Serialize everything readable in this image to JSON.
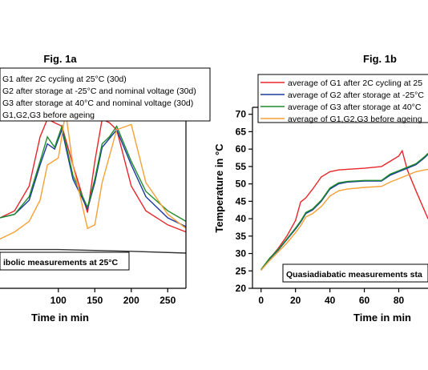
{
  "chart_data": [
    {
      "type": "line",
      "title": "Fig. 1a",
      "xlabel": "Time in min",
      "ylabel": "",
      "xlim": [
        20,
        275
      ],
      "xticks": [
        100,
        150,
        200,
        250
      ],
      "annotation": "ibolic measurements at 25°C",
      "legend_position": "top-left",
      "legend": [
        {
          "text": "G1 after 2C cycling at 25°C (30d)",
          "color": "#e8262a"
        },
        {
          "text": "G2 after storage at -25°C and nominal voltage (30d)",
          "color": "#1c3a9e"
        },
        {
          "text": "G3 after storage at 40°C and nominal voltage (30d)",
          "color": "#1f8a2b"
        },
        {
          "text": "G1,G2,G3 before ageing",
          "color": "#f7a035"
        }
      ],
      "series": [
        {
          "color": "#e8262a",
          "x": [
            20,
            40,
            60,
            75,
            85,
            95,
            105,
            120,
            140,
            150,
            160,
            170,
            180,
            200,
            220,
            250,
            275
          ],
          "y": [
            40,
            44,
            58,
            86,
            96,
            94,
            92,
            70,
            43,
            72,
            96,
            94,
            90,
            58,
            44,
            36,
            32
          ]
        },
        {
          "color": "#1c3a9e",
          "x": [
            20,
            40,
            60,
            75,
            85,
            95,
            105,
            120,
            140,
            150,
            160,
            170,
            180,
            200,
            220,
            250,
            275
          ],
          "y": [
            40,
            42,
            50,
            70,
            82,
            79,
            90,
            62,
            45,
            60,
            80,
            85,
            90,
            70,
            52,
            40,
            35
          ]
        },
        {
          "color": "#1f8a2b",
          "x": [
            20,
            40,
            60,
            75,
            85,
            95,
            105,
            120,
            140,
            150,
            160,
            170,
            180,
            200,
            220,
            250,
            275
          ],
          "y": [
            40,
            42,
            52,
            72,
            86,
            80,
            92,
            64,
            46,
            62,
            82,
            86,
            92,
            72,
            55,
            44,
            38
          ]
        },
        {
          "color": "#f7a035",
          "x": [
            20,
            40,
            60,
            75,
            85,
            100,
            110,
            120,
            140,
            150,
            160,
            170,
            180,
            200,
            220,
            250,
            275
          ],
          "y": [
            28,
            32,
            38,
            50,
            70,
            74,
            100,
            70,
            34,
            36,
            60,
            75,
            90,
            93,
            60,
            42,
            34
          ]
        },
        {
          "color": "#333333",
          "x": [
            20,
            100,
            200,
            275
          ],
          "y": [
            22,
            22,
            21,
            20
          ]
        }
      ]
    },
    {
      "type": "line",
      "title": "Fig. 1b",
      "xlabel": "Time in min",
      "ylabel": "Temperature in °C",
      "xlim": [
        -5,
        97
      ],
      "ylim": [
        20,
        72
      ],
      "xticks": [
        0,
        20,
        40,
        60,
        80
      ],
      "yticks": [
        20,
        25,
        30,
        35,
        40,
        45,
        50,
        55,
        60,
        65,
        70
      ],
      "annotation": "Quasiadiabatic measurements sta",
      "legend_position": "top",
      "legend": [
        {
          "text": "average of G1 after 2C cycling at 25",
          "color": "#e8262a"
        },
        {
          "text": "average of G2 after storage at -25°C",
          "color": "#1c3a9e"
        },
        {
          "text": "average of G3 after storage at 40°C",
          "color": "#1f8a2b"
        },
        {
          "text": "average of G1,G2,G3 before ageing",
          "color": "#f7a035"
        }
      ],
      "series": [
        {
          "color": "#e8262a",
          "x": [
            0,
            5,
            10,
            15,
            20,
            23,
            26,
            30,
            35,
            40,
            45,
            50,
            60,
            70,
            75,
            80,
            82,
            85,
            90,
            97
          ],
          "y": [
            25.2,
            28.5,
            31.5,
            35,
            39.5,
            44.8,
            46,
            48.5,
            52,
            53.5,
            54,
            54.2,
            54.5,
            55,
            56.5,
            58,
            59.5,
            54,
            48,
            40
          ]
        },
        {
          "color": "#1c3a9e",
          "x": [
            0,
            5,
            10,
            15,
            20,
            23,
            26,
            30,
            35,
            40,
            45,
            50,
            60,
            70,
            75,
            80,
            85,
            90,
            95,
            97
          ],
          "y": [
            25.2,
            28.5,
            31,
            34,
            37,
            39,
            41.5,
            42.5,
            45,
            48.5,
            50,
            50.5,
            50.8,
            50.8,
            52.5,
            53.5,
            54.5,
            55.5,
            57.5,
            58.5
          ]
        },
        {
          "color": "#1f8a2b",
          "x": [
            0,
            5,
            10,
            15,
            20,
            23,
            26,
            30,
            35,
            40,
            45,
            50,
            60,
            70,
            75,
            80,
            85,
            90,
            95,
            97
          ],
          "y": [
            25.4,
            28.7,
            31.2,
            34.2,
            37.3,
            39.3,
            41.8,
            42.8,
            45.3,
            48.8,
            50.3,
            50.7,
            51,
            51,
            52.8,
            53.8,
            54.8,
            55.8,
            57.8,
            58.8
          ]
        },
        {
          "color": "#f7a035",
          "x": [
            0,
            5,
            10,
            15,
            20,
            23,
            26,
            30,
            35,
            40,
            45,
            50,
            60,
            70,
            75,
            80,
            85,
            90,
            95,
            97
          ],
          "y": [
            25.2,
            28,
            30.5,
            33,
            36,
            38,
            40.5,
            41.5,
            43.5,
            46.5,
            48,
            48.5,
            49,
            49.3,
            50.5,
            51.5,
            52.5,
            53.5,
            54,
            54.2
          ]
        }
      ]
    }
  ]
}
